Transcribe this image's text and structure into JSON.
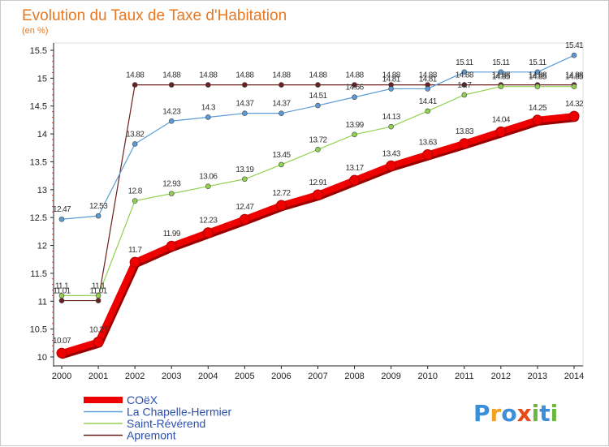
{
  "chart_data": {
    "type": "line",
    "title": "Evolution du Taux de Taxe d'Habitation",
    "ylabel": "(en %)",
    "xlabel": "",
    "ylim": [
      10,
      15.5
    ],
    "yticks": [
      "10",
      "10.5",
      "11",
      "11.5",
      "12",
      "12.5",
      "13",
      "13.5",
      "14",
      "14.5",
      "15",
      "15.5"
    ],
    "categories": [
      "2000",
      "2001",
      "2002",
      "2003",
      "2004",
      "2005",
      "2006",
      "2007",
      "2008",
      "2009",
      "2010",
      "2011",
      "2012",
      "2013",
      "2014"
    ],
    "series": [
      {
        "name": "COëX",
        "color": "#ee0000",
        "values": [
          10.07,
          10.27,
          11.7,
          11.99,
          12.23,
          12.47,
          12.72,
          12.91,
          13.17,
          13.43,
          13.63,
          13.83,
          14.04,
          14.25,
          14.32
        ],
        "labels": [
          "10.07",
          "10.27",
          "11.7",
          "11.99",
          "12.23",
          "12.47",
          "12.72",
          "12.91",
          "13.17",
          "13.43",
          "13.63",
          "13.83",
          "14.04",
          "14.25",
          "14.32"
        ]
      },
      {
        "name": "La Chapelle-Hermier",
        "color": "#5b9bd5",
        "values": [
          12.47,
          12.53,
          13.82,
          14.23,
          14.3,
          14.37,
          14.37,
          14.51,
          14.66,
          14.81,
          14.81,
          15.11,
          15.11,
          15.11,
          15.41
        ],
        "labels": [
          "12.47",
          "12.53",
          "13.82",
          "14.23",
          "14.3",
          "14.37",
          "14.37",
          "14.51",
          "14.66",
          "14.81",
          "14.81",
          "15.11",
          "15.11",
          "15.11",
          "15.41"
        ]
      },
      {
        "name": "Saint-Révérend",
        "color": "#92d050",
        "values": [
          11.1,
          11.1,
          12.8,
          12.93,
          13.06,
          13.19,
          13.45,
          13.72,
          13.99,
          14.13,
          14.41,
          14.7,
          14.85,
          14.85,
          14.85
        ],
        "labels": [
          "11.1",
          "11.1",
          "12.8",
          "12.93",
          "13.06",
          "13.19",
          "13.45",
          "13.72",
          "13.99",
          "14.13",
          "14.41",
          "14.7",
          "14.85",
          "14.85",
          "14.85"
        ]
      },
      {
        "name": "Apremont",
        "color": "#6b2020",
        "values": [
          11.01,
          11.01,
          14.88,
          14.88,
          14.88,
          14.88,
          14.88,
          14.88,
          14.88,
          14.88,
          14.88,
          14.88,
          14.88,
          14.88,
          14.88
        ],
        "labels": [
          "11.01",
          "11.01",
          "14.88",
          "14.88",
          "14.88",
          "14.88",
          "14.88",
          "14.88",
          "14.88",
          "14.88",
          "14.88",
          "14.88",
          "14.88",
          "14.88",
          "14.88"
        ]
      }
    ],
    "legend_position": "bottom-left",
    "grid": false
  },
  "brand": {
    "letters": [
      "P",
      "r",
      "o",
      "x",
      "i",
      "t",
      "i"
    ],
    "colors": [
      "#3b8fd8",
      "#f4a020",
      "#3b8fd8",
      "#e84a1a",
      "#6ab83c",
      "#3b8fd8",
      "#6ab83c"
    ]
  }
}
